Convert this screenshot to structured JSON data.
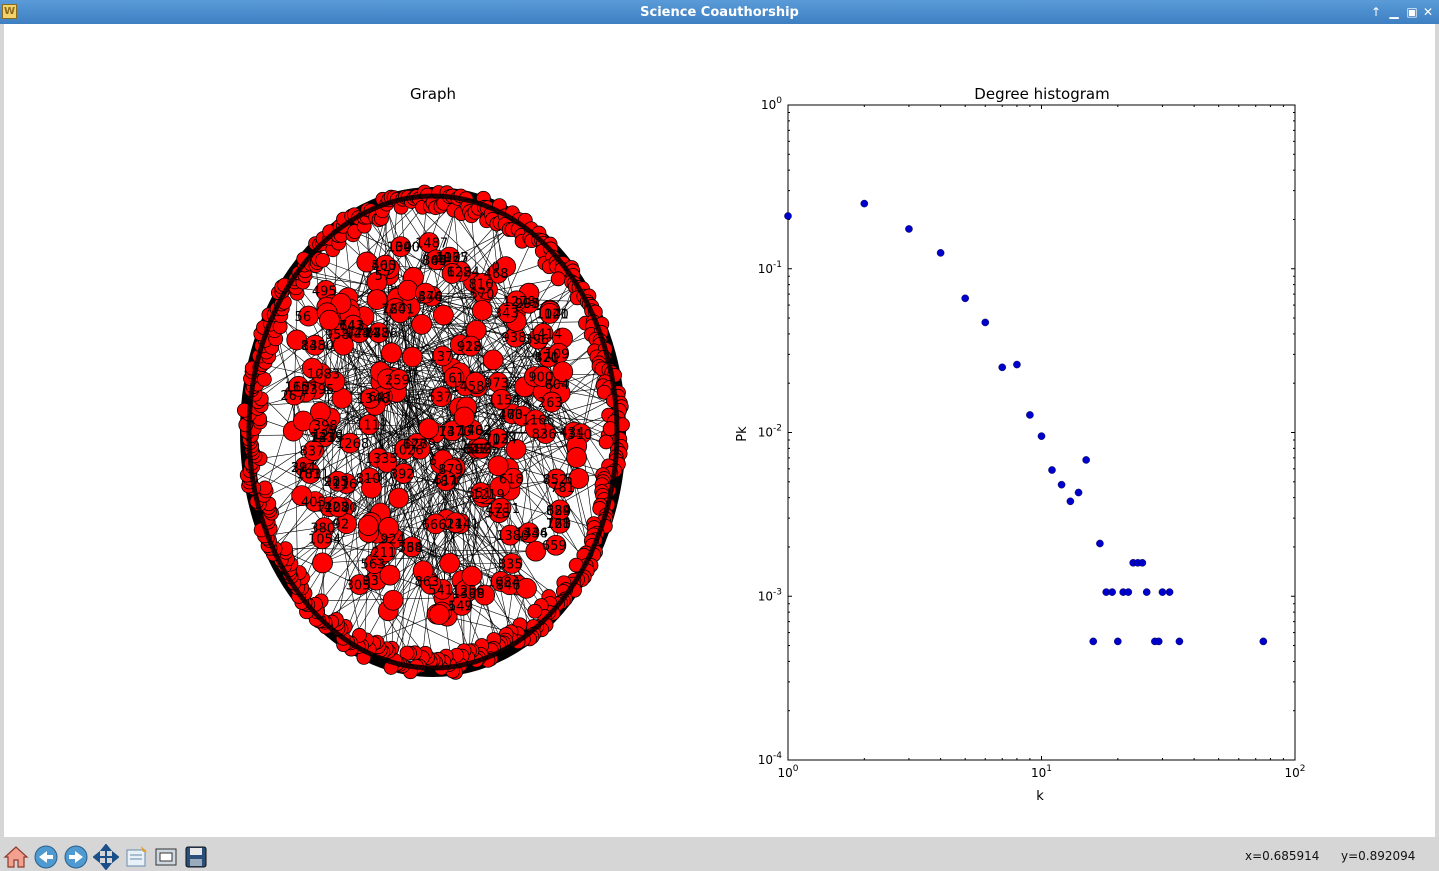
{
  "window": {
    "title": "Science Coauthorship",
    "app_icon": "W",
    "controls": [
      "up-arrow-icon",
      "minimize-icon",
      "maximize-icon",
      "close-icon"
    ]
  },
  "left_panel": {
    "title": "Graph"
  },
  "chart_data": {
    "type": "scatter",
    "title": "Degree histogram",
    "xlabel": "k",
    "ylabel": "Pk",
    "xscale": "log",
    "yscale": "log",
    "xlim": [
      1,
      100
    ],
    "ylim": [
      0.0001,
      1
    ],
    "xticks": [
      {
        "base": "10",
        "exp": "0"
      },
      {
        "base": "10",
        "exp": "1"
      },
      {
        "base": "10",
        "exp": "2"
      }
    ],
    "yticks": [
      {
        "base": "10",
        "exp": "0"
      },
      {
        "base": "10",
        "exp": "-1"
      },
      {
        "base": "10",
        "exp": "-2"
      },
      {
        "base": "10",
        "exp": "-3"
      },
      {
        "base": "10",
        "exp": "-4"
      }
    ],
    "marker_color": "#0000cc",
    "x": [
      1,
      2,
      3,
      4,
      5,
      6,
      7,
      8,
      9,
      10,
      11,
      12,
      13,
      14,
      15,
      16,
      17,
      18,
      19,
      20,
      21,
      22,
      23,
      24,
      25,
      26,
      28,
      29,
      30,
      32,
      35,
      75
    ],
    "y": [
      0.21,
      0.25,
      0.175,
      0.125,
      0.066,
      0.047,
      0.025,
      0.026,
      0.0128,
      0.0095,
      0.0059,
      0.0048,
      0.0038,
      0.0043,
      0.0068,
      0.00053,
      0.0021,
      0.00106,
      0.00106,
      0.00053,
      0.00106,
      0.00106,
      0.0016,
      0.0016,
      0.0016,
      0.00106,
      0.00053,
      0.00053,
      0.00106,
      0.00106,
      0.00053,
      0.00053
    ]
  },
  "toolbar": {
    "buttons": [
      "home-icon",
      "back-icon",
      "forward-icon",
      "pan-icon",
      "configure-subplots-icon",
      "zoom-icon",
      "save-icon"
    ],
    "x_readout": "x=0.685914",
    "y_readout": "y=0.892094"
  }
}
